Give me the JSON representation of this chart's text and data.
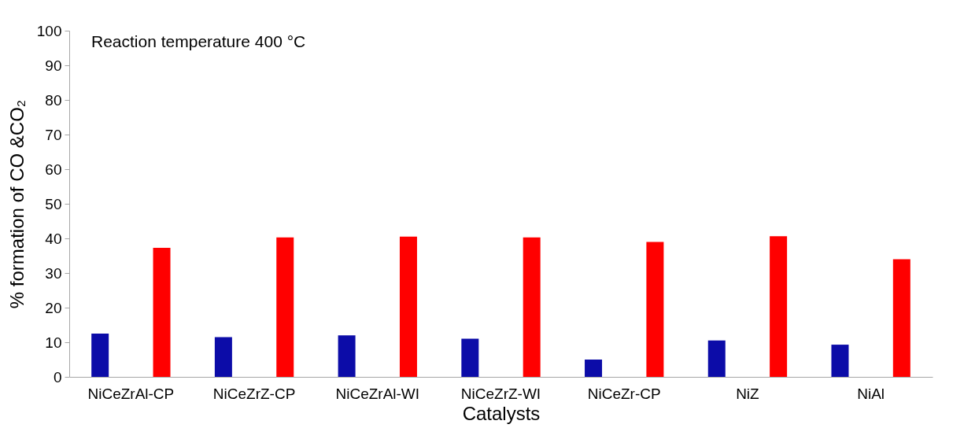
{
  "chart_data": {
    "type": "bar",
    "xlabel": "Catalysts",
    "ylabel": "% formation of CO &CO₂",
    "annotations": [
      "Reaction temperature 400 °C"
    ],
    "categories": [
      "NiCeZrAl-CP",
      "NiCeZrZ-CP",
      "NiCeZrAl-WI",
      "NiCeZrZ-WI",
      "NiCeZr-CP",
      "NiZ",
      "NiAl"
    ],
    "series": [
      {
        "color": "#0c0ca8",
        "values": [
          12.5,
          11.5,
          12,
          11,
          5,
          10.5,
          9.3
        ]
      },
      {
        "color": "#ff0000",
        "values": [
          37.3,
          40.3,
          40.5,
          40.3,
          39,
          40.6,
          34
        ]
      }
    ],
    "ylim": [
      0,
      100
    ],
    "yticks": [
      0,
      10,
      20,
      30,
      40,
      50,
      60,
      70,
      80,
      90,
      100
    ],
    "grid": false,
    "legend": false
  }
}
